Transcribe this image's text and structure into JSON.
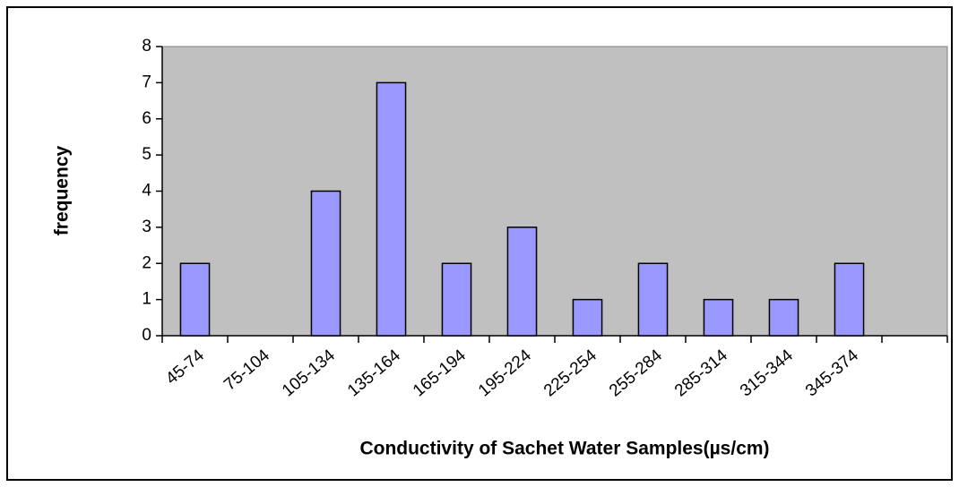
{
  "chart_data": {
    "type": "bar",
    "xlabel": "Conductivity of Sachet Water Samples(µs/cm)",
    "ylabel": "frequency",
    "categories": [
      "45-74",
      "75-104",
      "105-134",
      "135-164",
      "165-194",
      "195-224",
      "225-254",
      "255-284",
      "285-314",
      "315-344",
      "345-374",
      null
    ],
    "values": [
      2,
      0,
      4,
      7,
      2,
      3,
      1,
      2,
      1,
      1,
      2,
      null
    ],
    "color": "#9999ff",
    "ylim": [
      0,
      8
    ],
    "yticks": [
      0,
      1,
      2,
      3,
      4,
      5,
      6,
      7,
      8
    ],
    "grid": false
  }
}
